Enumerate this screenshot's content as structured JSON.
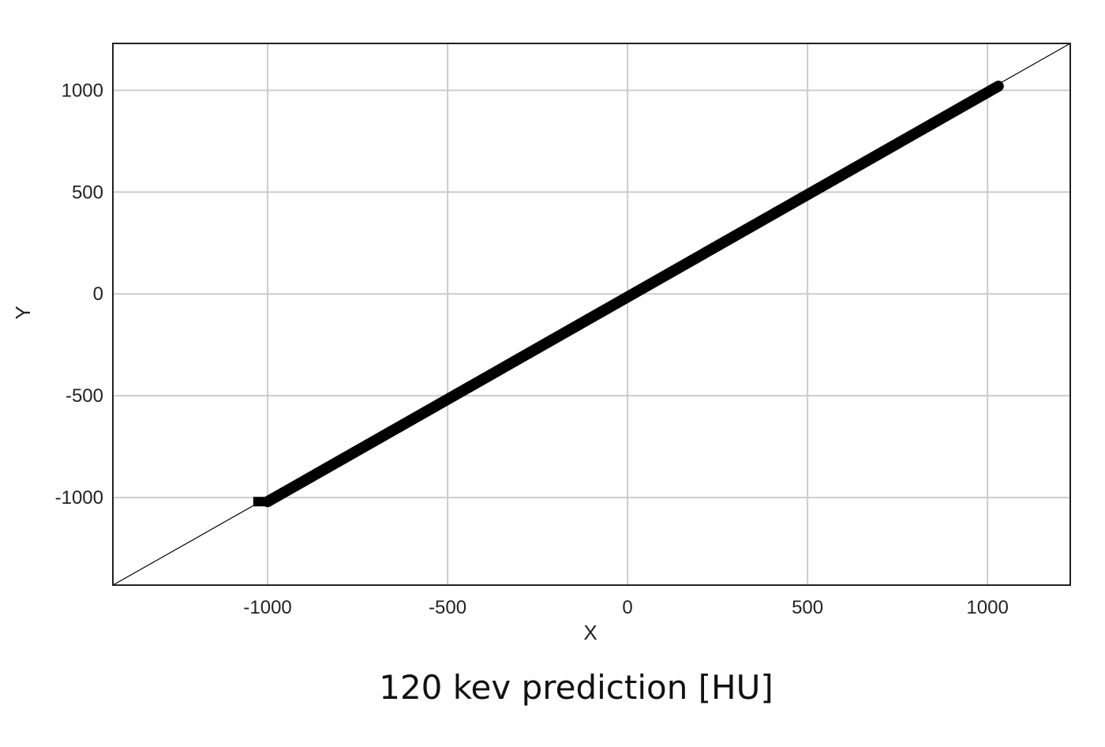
{
  "chart_data": {
    "type": "scatter",
    "xlabel": "X",
    "ylabel": "Y",
    "caption": "120 kev prediction [HU]",
    "xlim": [
      -1430,
      1230
    ],
    "ylim": [
      -1430,
      1230
    ],
    "xticks": [
      -1000,
      -500,
      0,
      500,
      1000
    ],
    "yticks": [
      -1000,
      -500,
      0,
      500,
      1000
    ],
    "grid": true,
    "reference_line": {
      "from": [
        -1430,
        -1430
      ],
      "to": [
        1230,
        1230
      ]
    },
    "series": [
      {
        "points_from": [
          -1000,
          -1020
        ],
        "points_to": [
          1030,
          1020
        ],
        "bottom_left_flat_segment": {
          "x_from": -1040,
          "x_to": -1000,
          "y": -1020
        }
      }
    ]
  },
  "colors": {
    "points": "#000000",
    "grid": "#cccccc",
    "frame": "#222222",
    "reference_line": "#000000"
  }
}
